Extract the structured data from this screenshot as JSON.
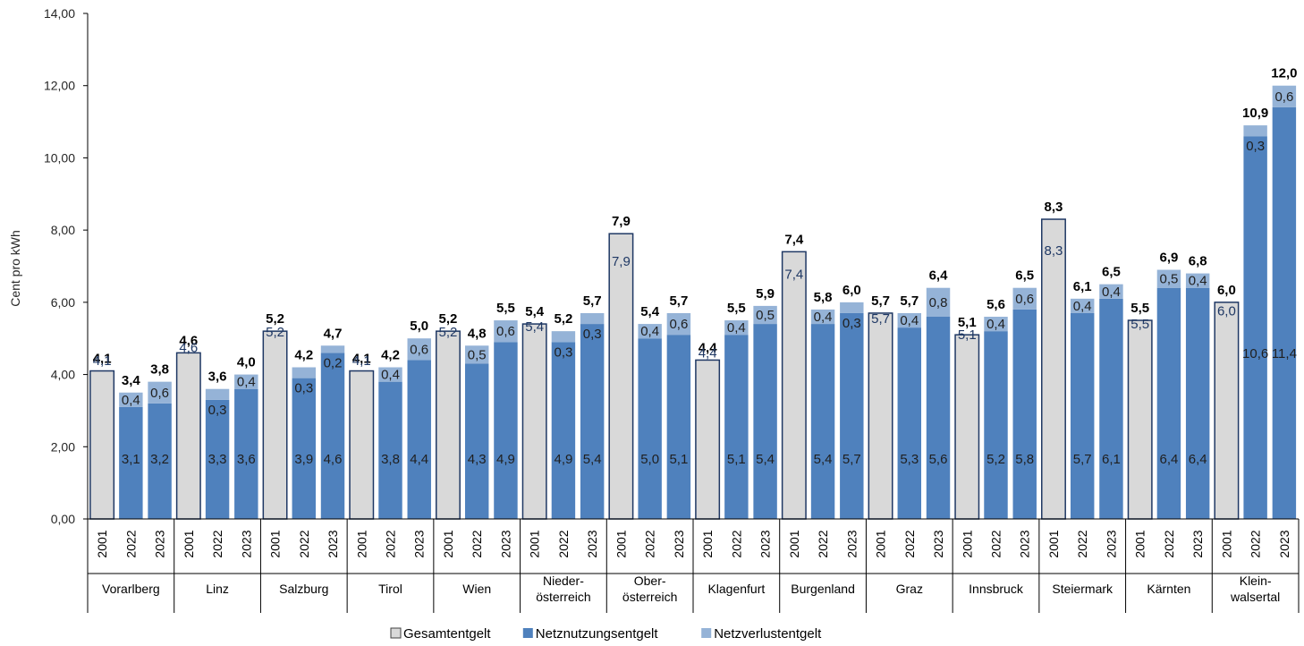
{
  "chart_data": {
    "type": "bar",
    "stacked": true,
    "ylabel": "Cent pro kWh",
    "ylim": [
      0,
      14
    ],
    "yticks": [
      "0,00",
      "2,00",
      "4,00",
      "6,00",
      "8,00",
      "10,00",
      "12,00",
      "14,00"
    ],
    "grid": false,
    "legend_position": "bottom",
    "legend": [
      {
        "name": "Gesamtentgelt",
        "color": "#d9d9d9"
      },
      {
        "name": "Netznutzungsentgelt",
        "color": "#4f81bd"
      },
      {
        "name": "Netzverlustentgelt",
        "color": "#95b3d7"
      }
    ],
    "colors": {
      "gesamt": "#d9d9d9",
      "netznutzung": "#4f81bd",
      "netzverlust": "#95b3d7",
      "outline": "#1f3864",
      "inner_label": "#1f3864"
    },
    "groups": [
      {
        "name": [
          "Vorarlberg"
        ],
        "bars": [
          {
            "year": "2001",
            "gesamt": 4.1,
            "total_label": "4,1",
            "inner_label": "4,1"
          },
          {
            "year": "2022",
            "nn": 3.1,
            "nv": 0.4,
            "total_label": "3,4",
            "nn_label": "3,1",
            "nv_label": "0,4"
          },
          {
            "year": "2023",
            "nn": 3.2,
            "nv": 0.6,
            "total_label": "3,8",
            "nn_label": "3,2",
            "nv_label": "0,6"
          }
        ]
      },
      {
        "name": [
          "Linz"
        ],
        "bars": [
          {
            "year": "2001",
            "gesamt": 4.6,
            "total_label": "4,6",
            "inner_label": "4,6"
          },
          {
            "year": "2022",
            "nn": 3.3,
            "nv": 0.3,
            "total_label": "3,6",
            "nn_label": "3,3",
            "nv_label": "0,3"
          },
          {
            "year": "2023",
            "nn": 3.6,
            "nv": 0.4,
            "total_label": "4,0",
            "nn_label": "3,6",
            "nv_label": "0,4"
          }
        ]
      },
      {
        "name": [
          "Salzburg"
        ],
        "bars": [
          {
            "year": "2001",
            "gesamt": 5.2,
            "total_label": "5,2",
            "inner_label": "5,2"
          },
          {
            "year": "2022",
            "nn": 3.9,
            "nv": 0.3,
            "total_label": "4,2",
            "nn_label": "3,9",
            "nv_label": "0,3"
          },
          {
            "year": "2023",
            "nn": 4.6,
            "nv": 0.2,
            "total_label": "4,7",
            "nn_label": "4,6",
            "nv_label": "0,2"
          }
        ]
      },
      {
        "name": [
          "Tirol"
        ],
        "bars": [
          {
            "year": "2001",
            "gesamt": 4.1,
            "total_label": "4,1",
            "inner_label": "4,1"
          },
          {
            "year": "2022",
            "nn": 3.8,
            "nv": 0.4,
            "total_label": "4,2",
            "nn_label": "3,8",
            "nv_label": "0,4"
          },
          {
            "year": "2023",
            "nn": 4.4,
            "nv": 0.6,
            "total_label": "5,0",
            "nn_label": "4,4",
            "nv_label": "0,6"
          }
        ]
      },
      {
        "name": [
          "Wien"
        ],
        "bars": [
          {
            "year": "2001",
            "gesamt": 5.2,
            "total_label": "5,2",
            "inner_label": "5,2"
          },
          {
            "year": "2022",
            "nn": 4.3,
            "nv": 0.5,
            "total_label": "4,8",
            "nn_label": "4,3",
            "nv_label": "0,5"
          },
          {
            "year": "2023",
            "nn": 4.9,
            "nv": 0.6,
            "total_label": "5,5",
            "nn_label": "4,9",
            "nv_label": "0,6"
          }
        ]
      },
      {
        "name": [
          "Nieder-",
          "österreich"
        ],
        "bars": [
          {
            "year": "2001",
            "gesamt": 5.4,
            "total_label": "5,4",
            "inner_label": "5,4"
          },
          {
            "year": "2022",
            "nn": 4.9,
            "nv": 0.3,
            "total_label": "5,2",
            "nn_label": "4,9",
            "nv_label": "0,3"
          },
          {
            "year": "2023",
            "nn": 5.4,
            "nv": 0.3,
            "total_label": "5,7",
            "nn_label": "5,4",
            "nv_label": "0,3"
          }
        ]
      },
      {
        "name": [
          "Ober-",
          "österreich"
        ],
        "bars": [
          {
            "year": "2001",
            "gesamt": 7.9,
            "total_label": "7,9",
            "inner_label": "7,9"
          },
          {
            "year": "2022",
            "nn": 5.0,
            "nv": 0.4,
            "total_label": "5,4",
            "nn_label": "5,0",
            "nv_label": "0,4"
          },
          {
            "year": "2023",
            "nn": 5.1,
            "nv": 0.6,
            "total_label": "5,7",
            "nn_label": "5,1",
            "nv_label": "0,6"
          }
        ]
      },
      {
        "name": [
          "Klagenfurt"
        ],
        "bars": [
          {
            "year": "2001",
            "gesamt": 4.4,
            "total_label": "4,4",
            "inner_label": "4,4"
          },
          {
            "year": "2022",
            "nn": 5.1,
            "nv": 0.4,
            "total_label": "5,5",
            "nn_label": "5,1",
            "nv_label": "0,4"
          },
          {
            "year": "2023",
            "nn": 5.4,
            "nv": 0.5,
            "total_label": "5,9",
            "nn_label": "5,4",
            "nv_label": "0,5"
          }
        ]
      },
      {
        "name": [
          "Burgenland"
        ],
        "bars": [
          {
            "year": "2001",
            "gesamt": 7.4,
            "total_label": "7,4",
            "inner_label": "7,4"
          },
          {
            "year": "2022",
            "nn": 5.4,
            "nv": 0.4,
            "total_label": "5,8",
            "nn_label": "5,4",
            "nv_label": "0,4"
          },
          {
            "year": "2023",
            "nn": 5.7,
            "nv": 0.3,
            "total_label": "6,0",
            "nn_label": "5,7",
            "nv_label": "0,3"
          }
        ]
      },
      {
        "name": [
          "Graz"
        ],
        "bars": [
          {
            "year": "2001",
            "gesamt": 5.7,
            "total_label": "5,7",
            "inner_label": "5,7"
          },
          {
            "year": "2022",
            "nn": 5.3,
            "nv": 0.4,
            "total_label": "5,7",
            "nn_label": "5,3",
            "nv_label": "0,4"
          },
          {
            "year": "2023",
            "nn": 5.6,
            "nv": 0.8,
            "total_label": "6,4",
            "nn_label": "5,6",
            "nv_label": "0,8"
          }
        ]
      },
      {
        "name": [
          "Innsbruck"
        ],
        "bars": [
          {
            "year": "2001",
            "gesamt": 5.1,
            "total_label": "5,1",
            "inner_label": "5,1"
          },
          {
            "year": "2022",
            "nn": 5.2,
            "nv": 0.4,
            "total_label": "5,6",
            "nn_label": "5,2",
            "nv_label": "0,4"
          },
          {
            "year": "2023",
            "nn": 5.8,
            "nv": 0.6,
            "total_label": "6,5",
            "nn_label": "5,8",
            "nv_label": "0,6"
          }
        ]
      },
      {
        "name": [
          "Steiermark"
        ],
        "bars": [
          {
            "year": "2001",
            "gesamt": 8.3,
            "total_label": "8,3",
            "inner_label": "8,3"
          },
          {
            "year": "2022",
            "nn": 5.7,
            "nv": 0.4,
            "total_label": "6,1",
            "nn_label": "5,7",
            "nv_label": "0,4"
          },
          {
            "year": "2023",
            "nn": 6.1,
            "nv": 0.4,
            "total_label": "6,5",
            "nn_label": "6,1",
            "nv_label": "0,4"
          }
        ]
      },
      {
        "name": [
          "Kärnten"
        ],
        "bars": [
          {
            "year": "2001",
            "gesamt": 5.5,
            "total_label": "5,5",
            "inner_label": "5,5"
          },
          {
            "year": "2022",
            "nn": 6.4,
            "nv": 0.5,
            "total_label": "6,9",
            "nn_label": "6,4",
            "nv_label": "0,5"
          },
          {
            "year": "2023",
            "nn": 6.4,
            "nv": 0.4,
            "total_label": "6,8",
            "nn_label": "6,4",
            "nv_label": "0,4"
          }
        ]
      },
      {
        "name": [
          "Klein-",
          "walsertal"
        ],
        "bars": [
          {
            "year": "2001",
            "gesamt": 6.0,
            "total_label": "6,0",
            "inner_label": "6,0"
          },
          {
            "year": "2022",
            "nn": 10.6,
            "nv": 0.3,
            "total_label": "10,9",
            "nn_label": "10,6",
            "nv_label": "0,3"
          },
          {
            "year": "2023",
            "nn": 11.4,
            "nv": 0.6,
            "total_label": "12,0",
            "nn_label": "11,4",
            "nv_label": "0,6"
          }
        ]
      }
    ]
  }
}
